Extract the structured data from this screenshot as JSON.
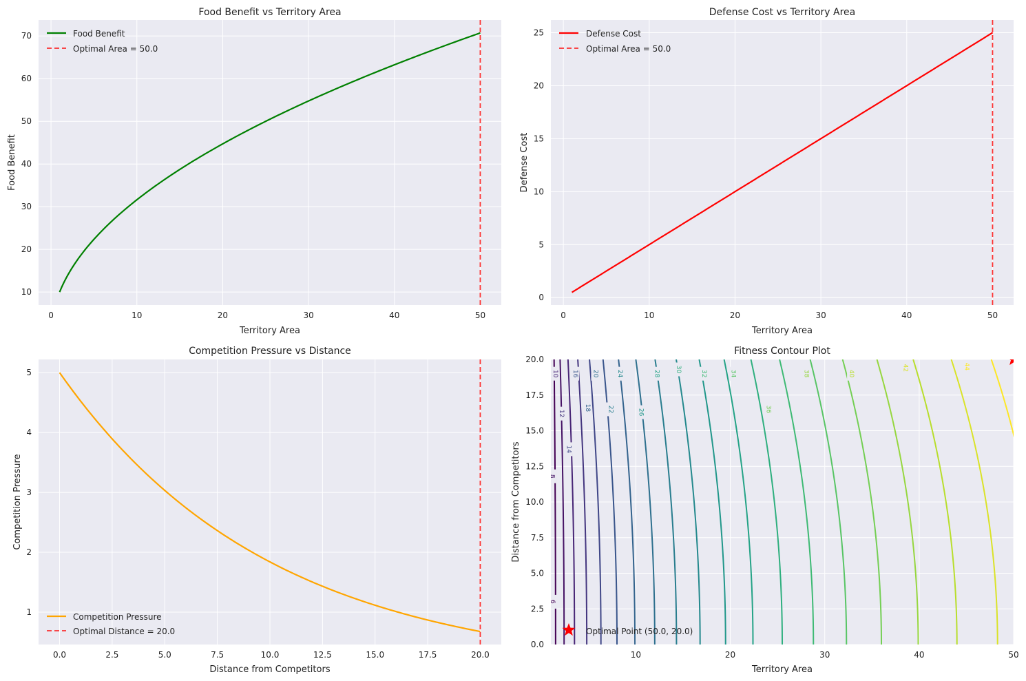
{
  "chart_data": [
    {
      "type": "line",
      "title": "Food Benefit vs Territory Area",
      "xlabel": "Territory Area",
      "ylabel": "Food Benefit",
      "xlim": [
        -1.45,
        52.45
      ],
      "ylim": [
        6.96,
        73.75
      ],
      "xticks": [
        0,
        10,
        20,
        30,
        40,
        50
      ],
      "yticks": [
        10,
        20,
        30,
        40,
        50,
        60,
        70
      ],
      "grid": true,
      "legend": "upper-left",
      "series": [
        {
          "name": "Food Benefit",
          "color": "#008000",
          "function": "10*sqrt(x)",
          "x": [
            1,
            2,
            4,
            6,
            8,
            10,
            15,
            20,
            25,
            30,
            35,
            40,
            45,
            50
          ],
          "y": [
            10,
            14.14,
            20,
            24.49,
            28.28,
            31.62,
            38.73,
            44.72,
            50,
            54.77,
            59.16,
            63.25,
            67.08,
            70.71
          ]
        }
      ],
      "vline": {
        "name": "Optimal Area = 50.0",
        "x": 50,
        "color": "#ff0000"
      }
    },
    {
      "type": "line",
      "title": "Defense Cost vs Territory Area",
      "xlabel": "Territory Area",
      "ylabel": "Defense Cost",
      "xlim": [
        -1.45,
        52.45
      ],
      "ylim": [
        -0.7,
        26.2
      ],
      "xticks": [
        0,
        10,
        20,
        30,
        40,
        50
      ],
      "yticks": [
        0,
        5,
        10,
        15,
        20,
        25
      ],
      "grid": true,
      "legend": "upper-left",
      "series": [
        {
          "name": "Defense Cost",
          "color": "#ff0000",
          "function": "0.5*x",
          "x": [
            1,
            50
          ],
          "y": [
            0.5,
            25
          ]
        }
      ],
      "vline": {
        "name": "Optimal Area = 50.0",
        "x": 50,
        "color": "#ff0000"
      }
    },
    {
      "type": "line",
      "title": "Competition Pressure vs Distance",
      "xlabel": "Distance from Competitors",
      "ylabel": "Competition Pressure",
      "xlim": [
        -1.0,
        21.0
      ],
      "ylim": [
        0.46,
        5.22
      ],
      "xticks": [
        0.0,
        2.5,
        5.0,
        7.5,
        10.0,
        12.5,
        15.0,
        17.5,
        20.0
      ],
      "xtick_labels": [
        "0.0",
        "2.5",
        "5.0",
        "7.5",
        "10.0",
        "12.5",
        "15.0",
        "17.5",
        "20.0"
      ],
      "yticks": [
        1,
        2,
        3,
        4,
        5
      ],
      "grid": true,
      "legend": "lower-left",
      "series": [
        {
          "name": "Competition Pressure",
          "color": "#ffa500",
          "function": "5*exp(-0.1*x)",
          "x": [
            0,
            2.5,
            5,
            7.5,
            10,
            12.5,
            15,
            17.5,
            20
          ],
          "y": [
            5,
            3.89,
            3.03,
            2.36,
            1.84,
            1.43,
            1.12,
            0.87,
            0.68
          ]
        }
      ],
      "vline": {
        "name": "Optimal Distance = 20.0",
        "x": 20,
        "color": "#ff0000"
      }
    },
    {
      "type": "contour",
      "title": "Fitness Contour Plot",
      "xlabel": "Territory Area",
      "ylabel": "Distance from Competitors",
      "xlim": [
        1,
        50
      ],
      "ylim": [
        0,
        20
      ],
      "xticks": [
        10,
        20,
        30,
        40,
        50
      ],
      "yticks": [
        0.0,
        2.5,
        5.0,
        7.5,
        10.0,
        12.5,
        15.0,
        17.5,
        20.0
      ],
      "ytick_labels": [
        "0.0",
        "2.5",
        "5.0",
        "7.5",
        "10.0",
        "12.5",
        "15.0",
        "17.5",
        "20.0"
      ],
      "colormap": "viridis",
      "levels": [
        6,
        8,
        10,
        12,
        14,
        16,
        18,
        20,
        22,
        24,
        26,
        28,
        30,
        32,
        34,
        36,
        38,
        40,
        42,
        44
      ],
      "level_labels": [
        {
          "text": "6",
          "x": 1.15,
          "y": 3.0
        },
        {
          "text": "8",
          "x": 1.1,
          "y": 11.8
        },
        {
          "text": "10",
          "x": 1.45,
          "y": 19.0
        },
        {
          "text": "12",
          "x": 2.1,
          "y": 16.2
        },
        {
          "text": "14",
          "x": 2.85,
          "y": 13.7
        },
        {
          "text": "16",
          "x": 3.55,
          "y": 19.0
        },
        {
          "text": "18",
          "x": 4.85,
          "y": 16.6
        },
        {
          "text": "20",
          "x": 5.7,
          "y": 19.0
        },
        {
          "text": "22",
          "x": 7.3,
          "y": 16.5
        },
        {
          "text": "24",
          "x": 8.3,
          "y": 19.0
        },
        {
          "text": "26",
          "x": 10.5,
          "y": 16.3
        },
        {
          "text": "28",
          "x": 12.2,
          "y": 19.0
        },
        {
          "text": "30",
          "x": 14.5,
          "y": 19.3
        },
        {
          "text": "32",
          "x": 17.2,
          "y": 19.0
        },
        {
          "text": "34",
          "x": 20.3,
          "y": 19.0
        },
        {
          "text": "36",
          "x": 24.0,
          "y": 16.5
        },
        {
          "text": "38",
          "x": 28.0,
          "y": 19.0
        },
        {
          "text": "40",
          "x": 32.8,
          "y": 19.0
        },
        {
          "text": "42",
          "x": 38.5,
          "y": 19.4
        },
        {
          "text": "44",
          "x": 45.0,
          "y": 19.5
        }
      ],
      "optimal_point": {
        "name": "Optimal Point (50.0, 20.0)",
        "x": 50,
        "y": 20,
        "color": "#ff0000"
      },
      "legend": "lower-left"
    }
  ]
}
